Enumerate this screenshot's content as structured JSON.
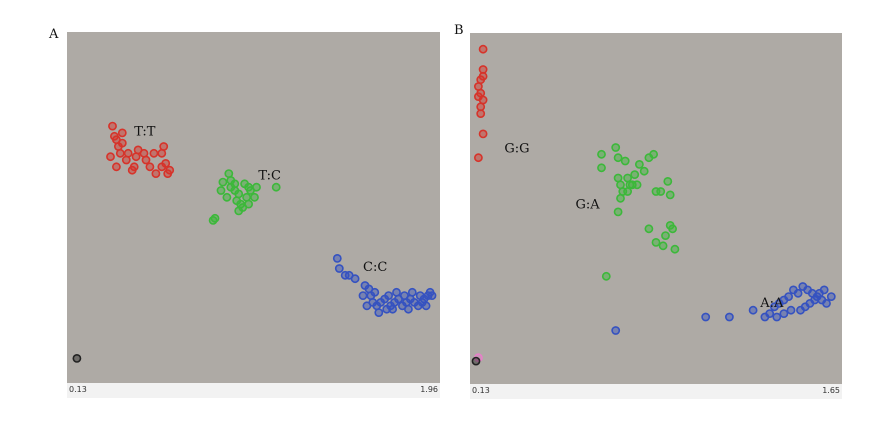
{
  "colors": {
    "plot_bg": "#aeaaa5",
    "red": "#d6332a",
    "green": "#3cb83a",
    "blue": "#3552c0",
    "black": "#222222",
    "pink": "#e77fc9"
  },
  "chart_data": [
    {
      "panel": "A",
      "type": "scatter",
      "xlim": [
        0.13,
        1.96
      ],
      "ylim": [
        0,
        1
      ],
      "x_tick_labels": [
        "0.13",
        "1.96"
      ],
      "cluster_labels": [
        {
          "text": "T:T",
          "x": 0.44,
          "y": 0.713
        },
        {
          "text": "T:C",
          "x": 1.07,
          "y": 0.582
        },
        {
          "text": "C:C",
          "x": 1.6,
          "y": 0.313
        }
      ],
      "series": [
        {
          "color": "red",
          "points": [
            [
              0.33,
              0.74
            ],
            [
              0.34,
              0.71
            ],
            [
              0.35,
              0.7
            ],
            [
              0.36,
              0.68
            ],
            [
              0.37,
              0.66
            ],
            [
              0.38,
              0.69
            ],
            [
              0.32,
              0.65
            ],
            [
              0.35,
              0.62
            ],
            [
              0.4,
              0.64
            ],
            [
              0.43,
              0.61
            ],
            [
              0.45,
              0.65
            ],
            [
              0.46,
              0.67
            ],
            [
              0.5,
              0.64
            ],
            [
              0.52,
              0.62
            ],
            [
              0.49,
              0.66
            ],
            [
              0.55,
              0.6
            ],
            [
              0.58,
              0.62
            ],
            [
              0.6,
              0.63
            ],
            [
              0.61,
              0.6
            ],
            [
              0.62,
              0.61
            ],
            [
              0.58,
              0.66
            ],
            [
              0.59,
              0.68
            ],
            [
              0.44,
              0.62
            ],
            [
              0.38,
              0.72
            ],
            [
              0.54,
              0.66
            ],
            [
              0.41,
              0.66
            ]
          ]
        },
        {
          "color": "green",
          "points": [
            [
              0.84,
              0.462
            ],
            [
              0.85,
              0.468
            ],
            [
              0.89,
              0.575
            ],
            [
              0.88,
              0.55
            ],
            [
              0.91,
              0.53
            ],
            [
              0.93,
              0.56
            ],
            [
              0.95,
              0.55
            ],
            [
              0.96,
              0.52
            ],
            [
              0.97,
              0.54
            ],
            [
              1.0,
              0.57
            ],
            [
              0.98,
              0.51
            ],
            [
              0.99,
              0.5
            ],
            [
              1.01,
              0.53
            ],
            [
              1.02,
              0.51
            ],
            [
              1.03,
              0.55
            ],
            [
              1.06,
              0.56
            ],
            [
              0.93,
              0.58
            ],
            [
              1.16,
              0.56
            ],
            [
              1.02,
              0.56
            ],
            [
              0.97,
              0.49
            ],
            [
              1.05,
              0.53
            ],
            [
              0.92,
              0.6
            ],
            [
              0.95,
              0.57
            ]
          ]
        },
        {
          "color": "blue",
          "points": [
            [
              1.47,
              0.35
            ],
            [
              1.48,
              0.32
            ],
            [
              1.51,
              0.3
            ],
            [
              1.53,
              0.3
            ],
            [
              1.56,
              0.29
            ],
            [
              1.61,
              0.27
            ],
            [
              1.63,
              0.26
            ],
            [
              1.64,
              0.24
            ],
            [
              1.65,
              0.22
            ],
            [
              1.67,
              0.21
            ],
            [
              1.69,
              0.22
            ],
            [
              1.71,
              0.23
            ],
            [
              1.72,
              0.2
            ],
            [
              1.74,
              0.21
            ],
            [
              1.76,
              0.22
            ],
            [
              1.78,
              0.23
            ],
            [
              1.8,
              0.21
            ],
            [
              1.82,
              0.22
            ],
            [
              1.84,
              0.23
            ],
            [
              1.86,
              0.22
            ],
            [
              1.88,
              0.21
            ],
            [
              1.9,
              0.22
            ],
            [
              1.91,
              0.23
            ],
            [
              1.93,
              0.24
            ],
            [
              1.94,
              0.25
            ],
            [
              1.95,
              0.24
            ],
            [
              1.62,
              0.21
            ],
            [
              1.6,
              0.24
            ],
            [
              1.66,
              0.25
            ],
            [
              1.73,
              0.24
            ],
            [
              1.77,
              0.25
            ],
            [
              1.81,
              0.24
            ],
            [
              1.85,
              0.25
            ],
            [
              1.89,
              0.24
            ],
            [
              1.68,
              0.19
            ],
            [
              1.75,
              0.2
            ],
            [
              1.83,
              0.2
            ],
            [
              1.92,
              0.21
            ]
          ]
        },
        {
          "color": "black",
          "points": [
            [
              0.15,
              0.055
            ]
          ]
        }
      ]
    },
    {
      "panel": "B",
      "type": "scatter",
      "xlim": [
        0.13,
        1.65
      ],
      "ylim": [
        0,
        1
      ],
      "x_tick_labels": [
        "0.13",
        "1.65"
      ],
      "cluster_labels": [
        {
          "text": "G:G",
          "x": 0.25,
          "y": 0.665
        },
        {
          "text": "G:A",
          "x": 0.55,
          "y": 0.5
        },
        {
          "text": "A:A",
          "x": 1.33,
          "y": 0.21
        }
      ],
      "series": [
        {
          "color": "red",
          "points": [
            [
              0.16,
              0.97
            ],
            [
              0.16,
              0.91
            ],
            [
              0.15,
              0.88
            ],
            [
              0.16,
              0.89
            ],
            [
              0.14,
              0.86
            ],
            [
              0.15,
              0.84
            ],
            [
              0.14,
              0.83
            ],
            [
              0.16,
              0.82
            ],
            [
              0.15,
              0.8
            ],
            [
              0.15,
              0.78
            ],
            [
              0.16,
              0.72
            ],
            [
              0.14,
              0.65
            ]
          ]
        },
        {
          "color": "green",
          "points": [
            [
              0.66,
              0.66
            ],
            [
              0.66,
              0.62
            ],
            [
              0.72,
              0.68
            ],
            [
              0.73,
              0.65
            ],
            [
              0.73,
              0.59
            ],
            [
              0.75,
              0.55
            ],
            [
              0.76,
              0.64
            ],
            [
              0.77,
              0.59
            ],
            [
              0.78,
              0.57
            ],
            [
              0.79,
              0.57
            ],
            [
              0.8,
              0.6
            ],
            [
              0.81,
              0.57
            ],
            [
              0.82,
              0.63
            ],
            [
              0.84,
              0.61
            ],
            [
              0.86,
              0.65
            ],
            [
              0.88,
              0.66
            ],
            [
              0.89,
              0.55
            ],
            [
              0.91,
              0.55
            ],
            [
              0.94,
              0.58
            ],
            [
              0.95,
              0.54
            ],
            [
              0.95,
              0.45
            ],
            [
              0.92,
              0.39
            ],
            [
              0.89,
              0.4
            ],
            [
              0.93,
              0.42
            ],
            [
              0.96,
              0.44
            ],
            [
              0.97,
              0.38
            ],
            [
              0.74,
              0.57
            ],
            [
              0.74,
              0.53
            ],
            [
              0.77,
              0.55
            ],
            [
              0.73,
              0.49
            ],
            [
              0.68,
              0.3
            ],
            [
              0.86,
              0.44
            ]
          ]
        },
        {
          "color": "blue",
          "points": [
            [
              0.72,
              0.14
            ],
            [
              1.1,
              0.18
            ],
            [
              1.2,
              0.18
            ],
            [
              1.3,
              0.2
            ],
            [
              1.35,
              0.18
            ],
            [
              1.37,
              0.19
            ],
            [
              1.39,
              0.21
            ],
            [
              1.41,
              0.22
            ],
            [
              1.43,
              0.23
            ],
            [
              1.45,
              0.24
            ],
            [
              1.47,
              0.26
            ],
            [
              1.49,
              0.25
            ],
            [
              1.51,
              0.27
            ],
            [
              1.53,
              0.26
            ],
            [
              1.55,
              0.25
            ],
            [
              1.57,
              0.24
            ],
            [
              1.59,
              0.23
            ],
            [
              1.61,
              0.22
            ],
            [
              1.5,
              0.2
            ],
            [
              1.52,
              0.21
            ],
            [
              1.54,
              0.22
            ],
            [
              1.46,
              0.2
            ],
            [
              1.43,
              0.19
            ],
            [
              1.4,
              0.18
            ],
            [
              1.56,
              0.23
            ],
            [
              1.58,
              0.25
            ],
            [
              1.6,
              0.26
            ],
            [
              1.63,
              0.24
            ]
          ]
        },
        {
          "color": "pink",
          "points": [
            [
              0.14,
              0.06
            ]
          ]
        },
        {
          "color": "black",
          "points": [
            [
              0.13,
              0.05
            ]
          ]
        }
      ]
    }
  ]
}
